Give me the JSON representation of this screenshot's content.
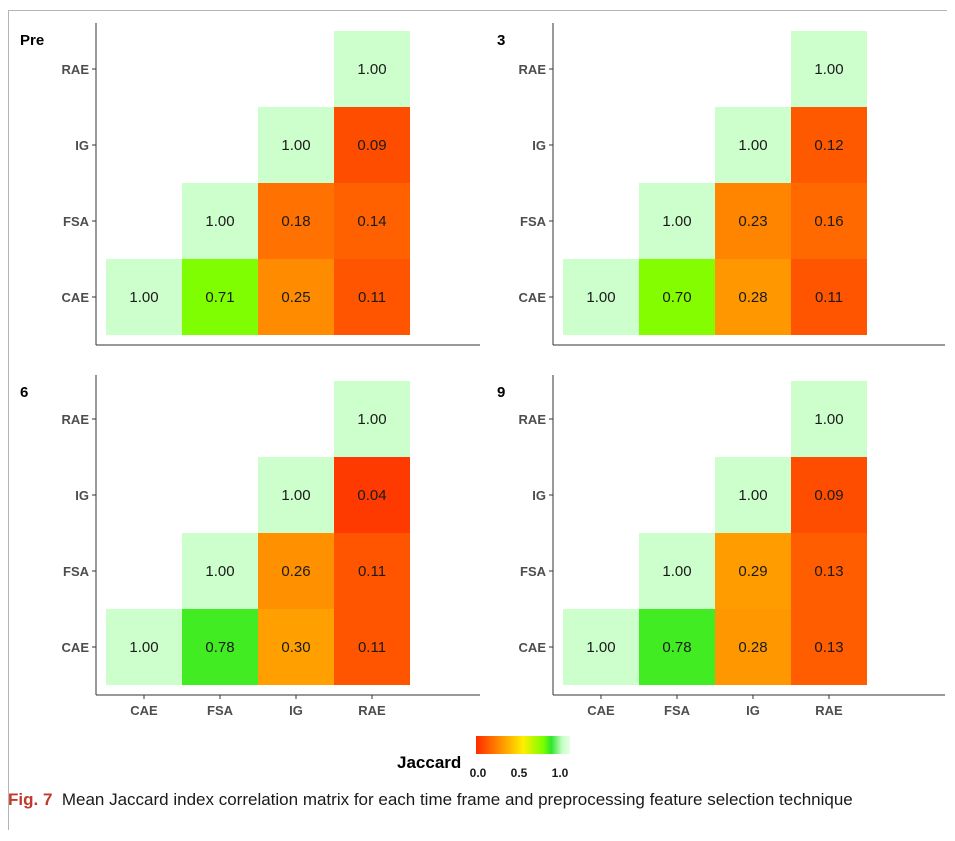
{
  "chart_data": [
    {
      "type": "heatmap",
      "title": "Pre",
      "categories": [
        "CAE",
        "FSA",
        "IG",
        "RAE"
      ],
      "cells": [
        {
          "x": "CAE",
          "y": "CAE",
          "value": "1.00"
        },
        {
          "x": "FSA",
          "y": "CAE",
          "value": "0.71"
        },
        {
          "x": "IG",
          "y": "CAE",
          "value": "0.25"
        },
        {
          "x": "RAE",
          "y": "CAE",
          "value": "0.11"
        },
        {
          "x": "FSA",
          "y": "FSA",
          "value": "1.00"
        },
        {
          "x": "IG",
          "y": "FSA",
          "value": "0.18"
        },
        {
          "x": "RAE",
          "y": "FSA",
          "value": "0.14"
        },
        {
          "x": "IG",
          "y": "IG",
          "value": "1.00"
        },
        {
          "x": "RAE",
          "y": "IG",
          "value": "0.09"
        },
        {
          "x": "RAE",
          "y": "RAE",
          "value": "1.00"
        }
      ]
    },
    {
      "type": "heatmap",
      "title": "3",
      "categories": [
        "CAE",
        "FSA",
        "IG",
        "RAE"
      ],
      "cells": [
        {
          "x": "CAE",
          "y": "CAE",
          "value": "1.00"
        },
        {
          "x": "FSA",
          "y": "CAE",
          "value": "0.70"
        },
        {
          "x": "IG",
          "y": "CAE",
          "value": "0.28"
        },
        {
          "x": "RAE",
          "y": "CAE",
          "value": "0.11"
        },
        {
          "x": "FSA",
          "y": "FSA",
          "value": "1.00"
        },
        {
          "x": "IG",
          "y": "FSA",
          "value": "0.23"
        },
        {
          "x": "RAE",
          "y": "FSA",
          "value": "0.16"
        },
        {
          "x": "IG",
          "y": "IG",
          "value": "1.00"
        },
        {
          "x": "RAE",
          "y": "IG",
          "value": "0.12"
        },
        {
          "x": "RAE",
          "y": "RAE",
          "value": "1.00"
        }
      ]
    },
    {
      "type": "heatmap",
      "title": "6",
      "categories": [
        "CAE",
        "FSA",
        "IG",
        "RAE"
      ],
      "cells": [
        {
          "x": "CAE",
          "y": "CAE",
          "value": "1.00"
        },
        {
          "x": "FSA",
          "y": "CAE",
          "value": "0.78"
        },
        {
          "x": "IG",
          "y": "CAE",
          "value": "0.30"
        },
        {
          "x": "RAE",
          "y": "CAE",
          "value": "0.11"
        },
        {
          "x": "FSA",
          "y": "FSA",
          "value": "1.00"
        },
        {
          "x": "IG",
          "y": "FSA",
          "value": "0.26"
        },
        {
          "x": "RAE",
          "y": "FSA",
          "value": "0.11"
        },
        {
          "x": "IG",
          "y": "IG",
          "value": "1.00"
        },
        {
          "x": "RAE",
          "y": "IG",
          "value": "0.04"
        },
        {
          "x": "RAE",
          "y": "RAE",
          "value": "1.00"
        }
      ]
    },
    {
      "type": "heatmap",
      "title": "9",
      "categories": [
        "CAE",
        "FSA",
        "IG",
        "RAE"
      ],
      "cells": [
        {
          "x": "CAE",
          "y": "CAE",
          "value": "1.00"
        },
        {
          "x": "FSA",
          "y": "CAE",
          "value": "0.78"
        },
        {
          "x": "IG",
          "y": "CAE",
          "value": "0.28"
        },
        {
          "x": "RAE",
          "y": "CAE",
          "value": "0.13"
        },
        {
          "x": "FSA",
          "y": "FSA",
          "value": "1.00"
        },
        {
          "x": "IG",
          "y": "FSA",
          "value": "0.29"
        },
        {
          "x": "RAE",
          "y": "FSA",
          "value": "0.13"
        },
        {
          "x": "IG",
          "y": "IG",
          "value": "1.00"
        },
        {
          "x": "RAE",
          "y": "IG",
          "value": "0.09"
        },
        {
          "x": "RAE",
          "y": "RAE",
          "value": "1.00"
        }
      ]
    }
  ],
  "legend": {
    "title": "Jaccard",
    "ticks": [
      "0.0",
      "0.5",
      "1.0"
    ],
    "range": [
      0,
      1
    ],
    "colors": [
      "#ff2a00",
      "#ff8c00",
      "#ffee00",
      "#78ff00",
      "#2ee62e",
      "#c8ffc8",
      "#e6ffe6"
    ]
  },
  "caption": {
    "label": "Fig. 7",
    "text": "Mean Jaccard index correlation matrix for each time frame and preprocessing feature selection technique"
  }
}
